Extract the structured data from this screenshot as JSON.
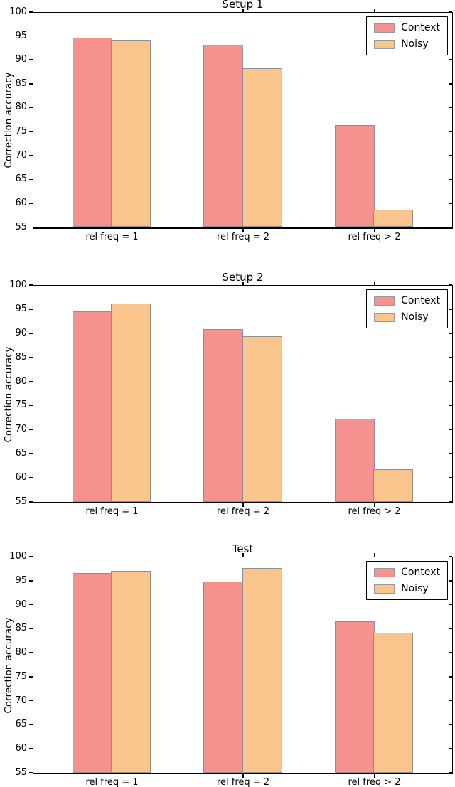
{
  "figure": {
    "description": "Three stacked bar charts comparing correction accuracy",
    "colors": {
      "context_fill": "#F5918E",
      "noisy_fill": "#FAC58C",
      "bar_edge": "#8F8F8F",
      "axis": "#000000"
    }
  },
  "chart_data": [
    {
      "type": "bar",
      "title": "Setup 1",
      "categories": [
        "rel freq = 1",
        "rel freq = 2",
        "rel freq > 2"
      ],
      "series": [
        {
          "name": "Context",
          "color": "#F5918E",
          "values": [
            94.7,
            93.1,
            76.4
          ]
        },
        {
          "name": "Noisy",
          "color": "#FAC58C",
          "values": [
            94.2,
            88.3,
            58.6
          ]
        }
      ],
      "xlabel": "",
      "ylabel": "Correction accuracy",
      "ylim": [
        55,
        100
      ],
      "yticks": [
        100,
        95,
        90,
        85,
        80,
        75,
        70,
        65,
        60,
        55
      ],
      "legend_position": "upper right",
      "grid": false
    },
    {
      "type": "bar",
      "title": "Setup 2",
      "categories": [
        "rel freq = 1",
        "rel freq = 2",
        "rel freq > 2"
      ],
      "series": [
        {
          "name": "Context",
          "color": "#F5918E",
          "values": [
            94.5,
            90.9,
            72.2
          ]
        },
        {
          "name": "Noisy",
          "color": "#FAC58C",
          "values": [
            96.1,
            89.4,
            61.8
          ]
        }
      ],
      "xlabel": "",
      "ylabel": "Correction accuracy",
      "ylim": [
        55,
        100
      ],
      "yticks": [
        100,
        95,
        90,
        85,
        80,
        75,
        70,
        65,
        60,
        55
      ],
      "legend_position": "upper right",
      "grid": false
    },
    {
      "type": "bar",
      "title": "Test",
      "categories": [
        "rel freq = 1",
        "rel freq = 2",
        "rel freq > 2"
      ],
      "series": [
        {
          "name": "Context",
          "color": "#F5918E",
          "values": [
            96.6,
            94.8,
            86.6
          ]
        },
        {
          "name": "Noisy",
          "color": "#FAC58C",
          "values": [
            97.1,
            97.6,
            84.2
          ]
        }
      ],
      "xlabel": "",
      "ylabel": "Correction accuracy",
      "ylim": [
        55,
        100
      ],
      "yticks": [
        100,
        95,
        90,
        85,
        80,
        75,
        70,
        65,
        60,
        55
      ],
      "legend_position": "upper right",
      "grid": false
    }
  ]
}
